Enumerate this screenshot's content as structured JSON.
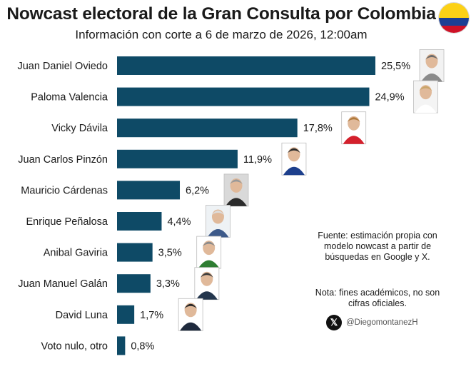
{
  "title": "Nowcast electoral de la Gran Consulta por Colombia",
  "subtitle": "Información con corte a 6 de marzo de 2026, 12:00am",
  "flag_colors": [
    "#fcd116",
    "#1c3f94",
    "#ce1126"
  ],
  "note": {
    "source": "Fuente: estimación propia con modelo nowcast a partir de búsquedas en Google y X.",
    "disclaimer": "Nota: fines académicos, no son cifras oficiales."
  },
  "handle": {
    "icon": "x-logo-icon",
    "text": "@DiegomontanezH"
  },
  "chart_data": {
    "type": "bar",
    "orientation": "horizontal",
    "bar_color": "#0e4a66",
    "categories": [
      "Juan Daniel Oviedo",
      "Paloma Valencia",
      "Vicky Dávila",
      "Juan Carlos Pinzón",
      "Mauricio Cárdenas",
      "Enrique Peñalosa",
      "Anibal Gaviria",
      "Juan Manuel Galán",
      "David Luna",
      "Voto nulo, otro"
    ],
    "values": [
      25.5,
      24.9,
      17.8,
      11.9,
      6.2,
      4.4,
      3.5,
      3.3,
      1.7,
      0.8
    ],
    "value_labels": [
      "25,5%",
      "24,9%",
      "17,8%",
      "11,9%",
      "6,2%",
      "4,4%",
      "3,5%",
      "3,3%",
      "1,7%",
      "0,8%"
    ],
    "photos": [
      {
        "icon": "candidate-photo-icon",
        "suit": "#8a8a8a",
        "bg": "#f2f2f2",
        "hair": "#6b6b6b"
      },
      {
        "icon": "candidate-photo-icon",
        "suit": "#ffffff",
        "bg": "#f4f4f4",
        "hair": "#c9a56a"
      },
      {
        "icon": "candidate-photo-icon",
        "suit": "#d4202c",
        "bg": "#ffffff",
        "hair": "#b07a3c"
      },
      {
        "icon": "candidate-photo-icon",
        "suit": "#1d3f8c",
        "bg": "#ffffff",
        "hair": "#2a2a2a"
      },
      {
        "icon": "candidate-photo-icon",
        "suit": "#2b2b2b",
        "bg": "#d9d9d9",
        "hair": "#999999"
      },
      {
        "icon": "candidate-photo-icon",
        "suit": "#3d5a8a",
        "bg": "#eef2f5",
        "hair": "#dddddd"
      },
      {
        "icon": "candidate-photo-icon",
        "suit": "#2e7d32",
        "bg": "#ffffff",
        "hair": "#8a8a8a"
      },
      {
        "icon": "candidate-photo-icon",
        "suit": "#24364d",
        "bg": "#ffffff",
        "hair": "#3a3a3a"
      },
      {
        "icon": "candidate-photo-icon",
        "suit": "#1f2a3d",
        "bg": "#ffffff",
        "hair": "#2a2a2a"
      }
    ]
  }
}
